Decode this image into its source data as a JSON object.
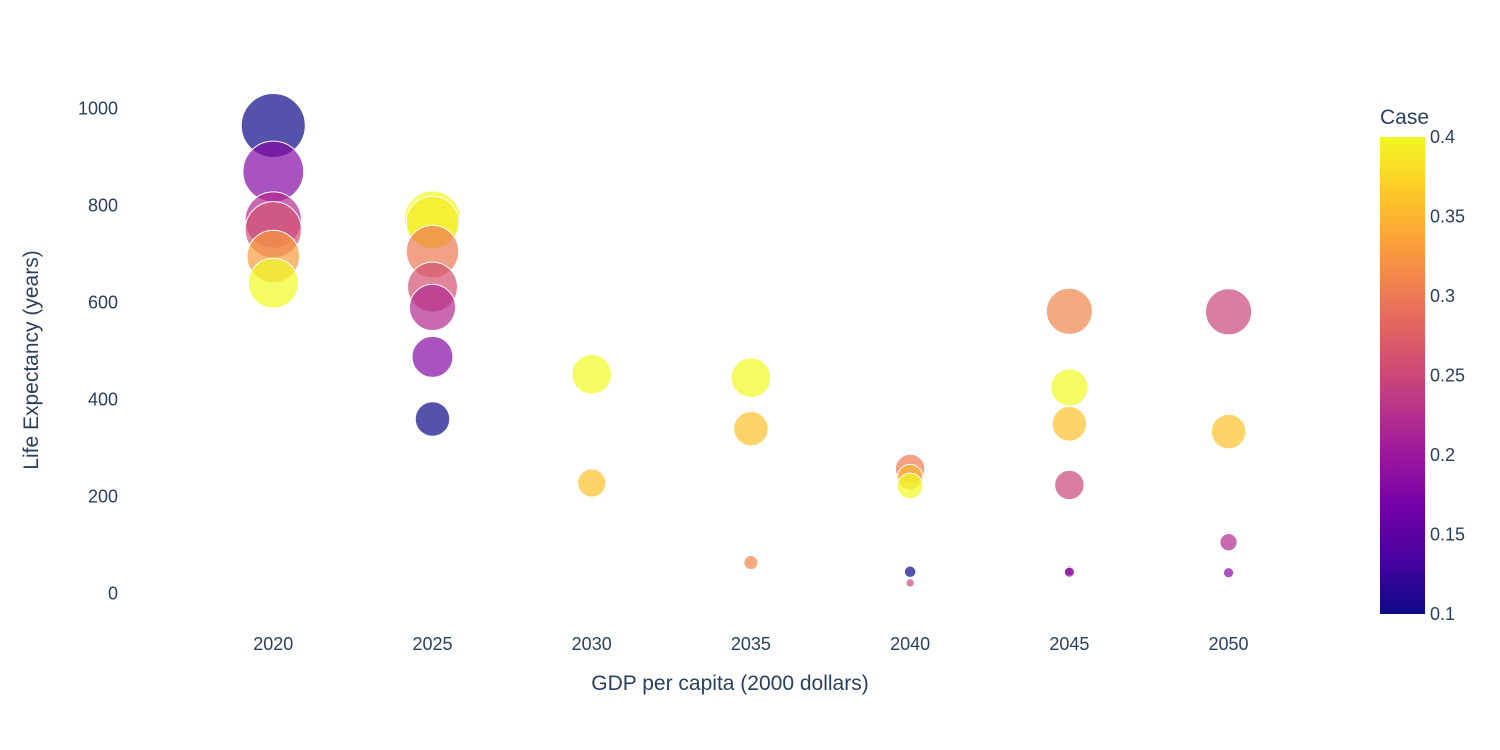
{
  "chart_data": {
    "type": "scatter",
    "title": "",
    "xlabel": "GDP per capita (2000 dollars)",
    "ylabel": "Life Expectancy (years)",
    "xlim": [
      2015.5,
      2053.5
    ],
    "ylim": [
      -75,
      1100
    ],
    "x_ticks": [
      2020,
      2025,
      2030,
      2035,
      2040,
      2045,
      2050
    ],
    "y_ticks": [
      0,
      200,
      400,
      600,
      800,
      1000
    ],
    "grid": false,
    "colorbar": {
      "title": "Case",
      "min": 0.1,
      "max": 0.4,
      "ticks": [
        0.1,
        0.15,
        0.2,
        0.25,
        0.3,
        0.35,
        0.4
      ],
      "colorscale": [
        "#0d0887",
        "#46039f",
        "#7201a8",
        "#9c179e",
        "#bd3786",
        "#d8576b",
        "#ed7953",
        "#fb9f3a",
        "#fdca26",
        "#f0f921"
      ]
    },
    "points": [
      {
        "x": 2020,
        "y": 965,
        "color_value": 0.1,
        "size": 1.0
      },
      {
        "x": 2020,
        "y": 870,
        "color_value": 0.18,
        "size": 0.95
      },
      {
        "x": 2020,
        "y": 770,
        "color_value": 0.22,
        "size": 0.88
      },
      {
        "x": 2020,
        "y": 750,
        "color_value": 0.26,
        "size": 0.88
      },
      {
        "x": 2020,
        "y": 695,
        "color_value": 0.33,
        "size": 0.82
      },
      {
        "x": 2020,
        "y": 640,
        "color_value": 0.4,
        "size": 0.78
      },
      {
        "x": 2025,
        "y": 772,
        "color_value": 0.4,
        "size": 0.88
      },
      {
        "x": 2025,
        "y": 765,
        "color_value": 0.39,
        "size": 0.82
      },
      {
        "x": 2025,
        "y": 705,
        "color_value": 0.3,
        "size": 0.82
      },
      {
        "x": 2025,
        "y": 632,
        "color_value": 0.26,
        "size": 0.78
      },
      {
        "x": 2025,
        "y": 590,
        "color_value": 0.22,
        "size": 0.72
      },
      {
        "x": 2025,
        "y": 488,
        "color_value": 0.18,
        "size": 0.64
      },
      {
        "x": 2025,
        "y": 360,
        "color_value": 0.1,
        "size": 0.54
      },
      {
        "x": 2030,
        "y": 452,
        "color_value": 0.4,
        "size": 0.62
      },
      {
        "x": 2030,
        "y": 228,
        "color_value": 0.36,
        "size": 0.44
      },
      {
        "x": 2035,
        "y": 445,
        "color_value": 0.4,
        "size": 0.62
      },
      {
        "x": 2035,
        "y": 340,
        "color_value": 0.36,
        "size": 0.54
      },
      {
        "x": 2035,
        "y": 64,
        "color_value": 0.31,
        "size": 0.22
      },
      {
        "x": 2040,
        "y": 257,
        "color_value": 0.3,
        "size": 0.46
      },
      {
        "x": 2040,
        "y": 240,
        "color_value": 0.35,
        "size": 0.4
      },
      {
        "x": 2040,
        "y": 222,
        "color_value": 0.4,
        "size": 0.4
      },
      {
        "x": 2040,
        "y": 45,
        "color_value": 0.1,
        "size": 0.18
      },
      {
        "x": 2040,
        "y": 22,
        "color_value": 0.25,
        "size": 0.13
      },
      {
        "x": 2045,
        "y": 582,
        "color_value": 0.31,
        "size": 0.72
      },
      {
        "x": 2045,
        "y": 425,
        "color_value": 0.4,
        "size": 0.58
      },
      {
        "x": 2045,
        "y": 350,
        "color_value": 0.36,
        "size": 0.54
      },
      {
        "x": 2045,
        "y": 224,
        "color_value": 0.25,
        "size": 0.46
      },
      {
        "x": 2045,
        "y": 47,
        "color_value": 0.15,
        "size": 0.16
      },
      {
        "x": 2045,
        "y": 44,
        "color_value": 0.2,
        "size": 0.16
      },
      {
        "x": 2050,
        "y": 581,
        "color_value": 0.25,
        "size": 0.72
      },
      {
        "x": 2050,
        "y": 334,
        "color_value": 0.36,
        "size": 0.54
      },
      {
        "x": 2050,
        "y": 106,
        "color_value": 0.22,
        "size": 0.27
      },
      {
        "x": 2050,
        "y": 43,
        "color_value": 0.18,
        "size": 0.16
      }
    ]
  }
}
